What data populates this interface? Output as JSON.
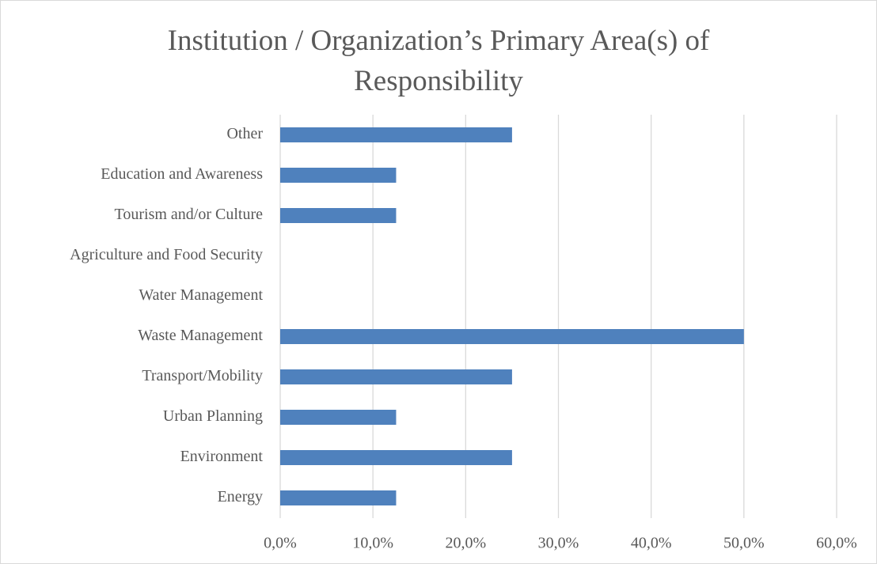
{
  "chart_data": {
    "type": "hbar",
    "title": "Institution / Organization’s Primary Area(s) of Responsibility",
    "categories": [
      "Energy",
      "Environment",
      "Urban Planning",
      "Transport/Mobility",
      "Waste Management",
      "Water Management",
      "Agriculture and Food Security",
      "Tourism and/or Culture",
      "Education and Awareness",
      "Other"
    ],
    "values": [
      12.5,
      25,
      12.5,
      25,
      50,
      0,
      0,
      12.5,
      12.5,
      25
    ],
    "color": "#4f81bd",
    "xlim": [
      0,
      60
    ],
    "xticks": [
      {
        "value": 0,
        "label": "0,0%"
      },
      {
        "value": 10,
        "label": "10,0%"
      },
      {
        "value": 20,
        "label": "20,0%"
      },
      {
        "value": 30,
        "label": "30,0%"
      },
      {
        "value": 40,
        "label": "40,0%"
      },
      {
        "value": 50,
        "label": "50,0%"
      },
      {
        "value": 60,
        "label": "60,0%"
      }
    ],
    "grid": true
  }
}
